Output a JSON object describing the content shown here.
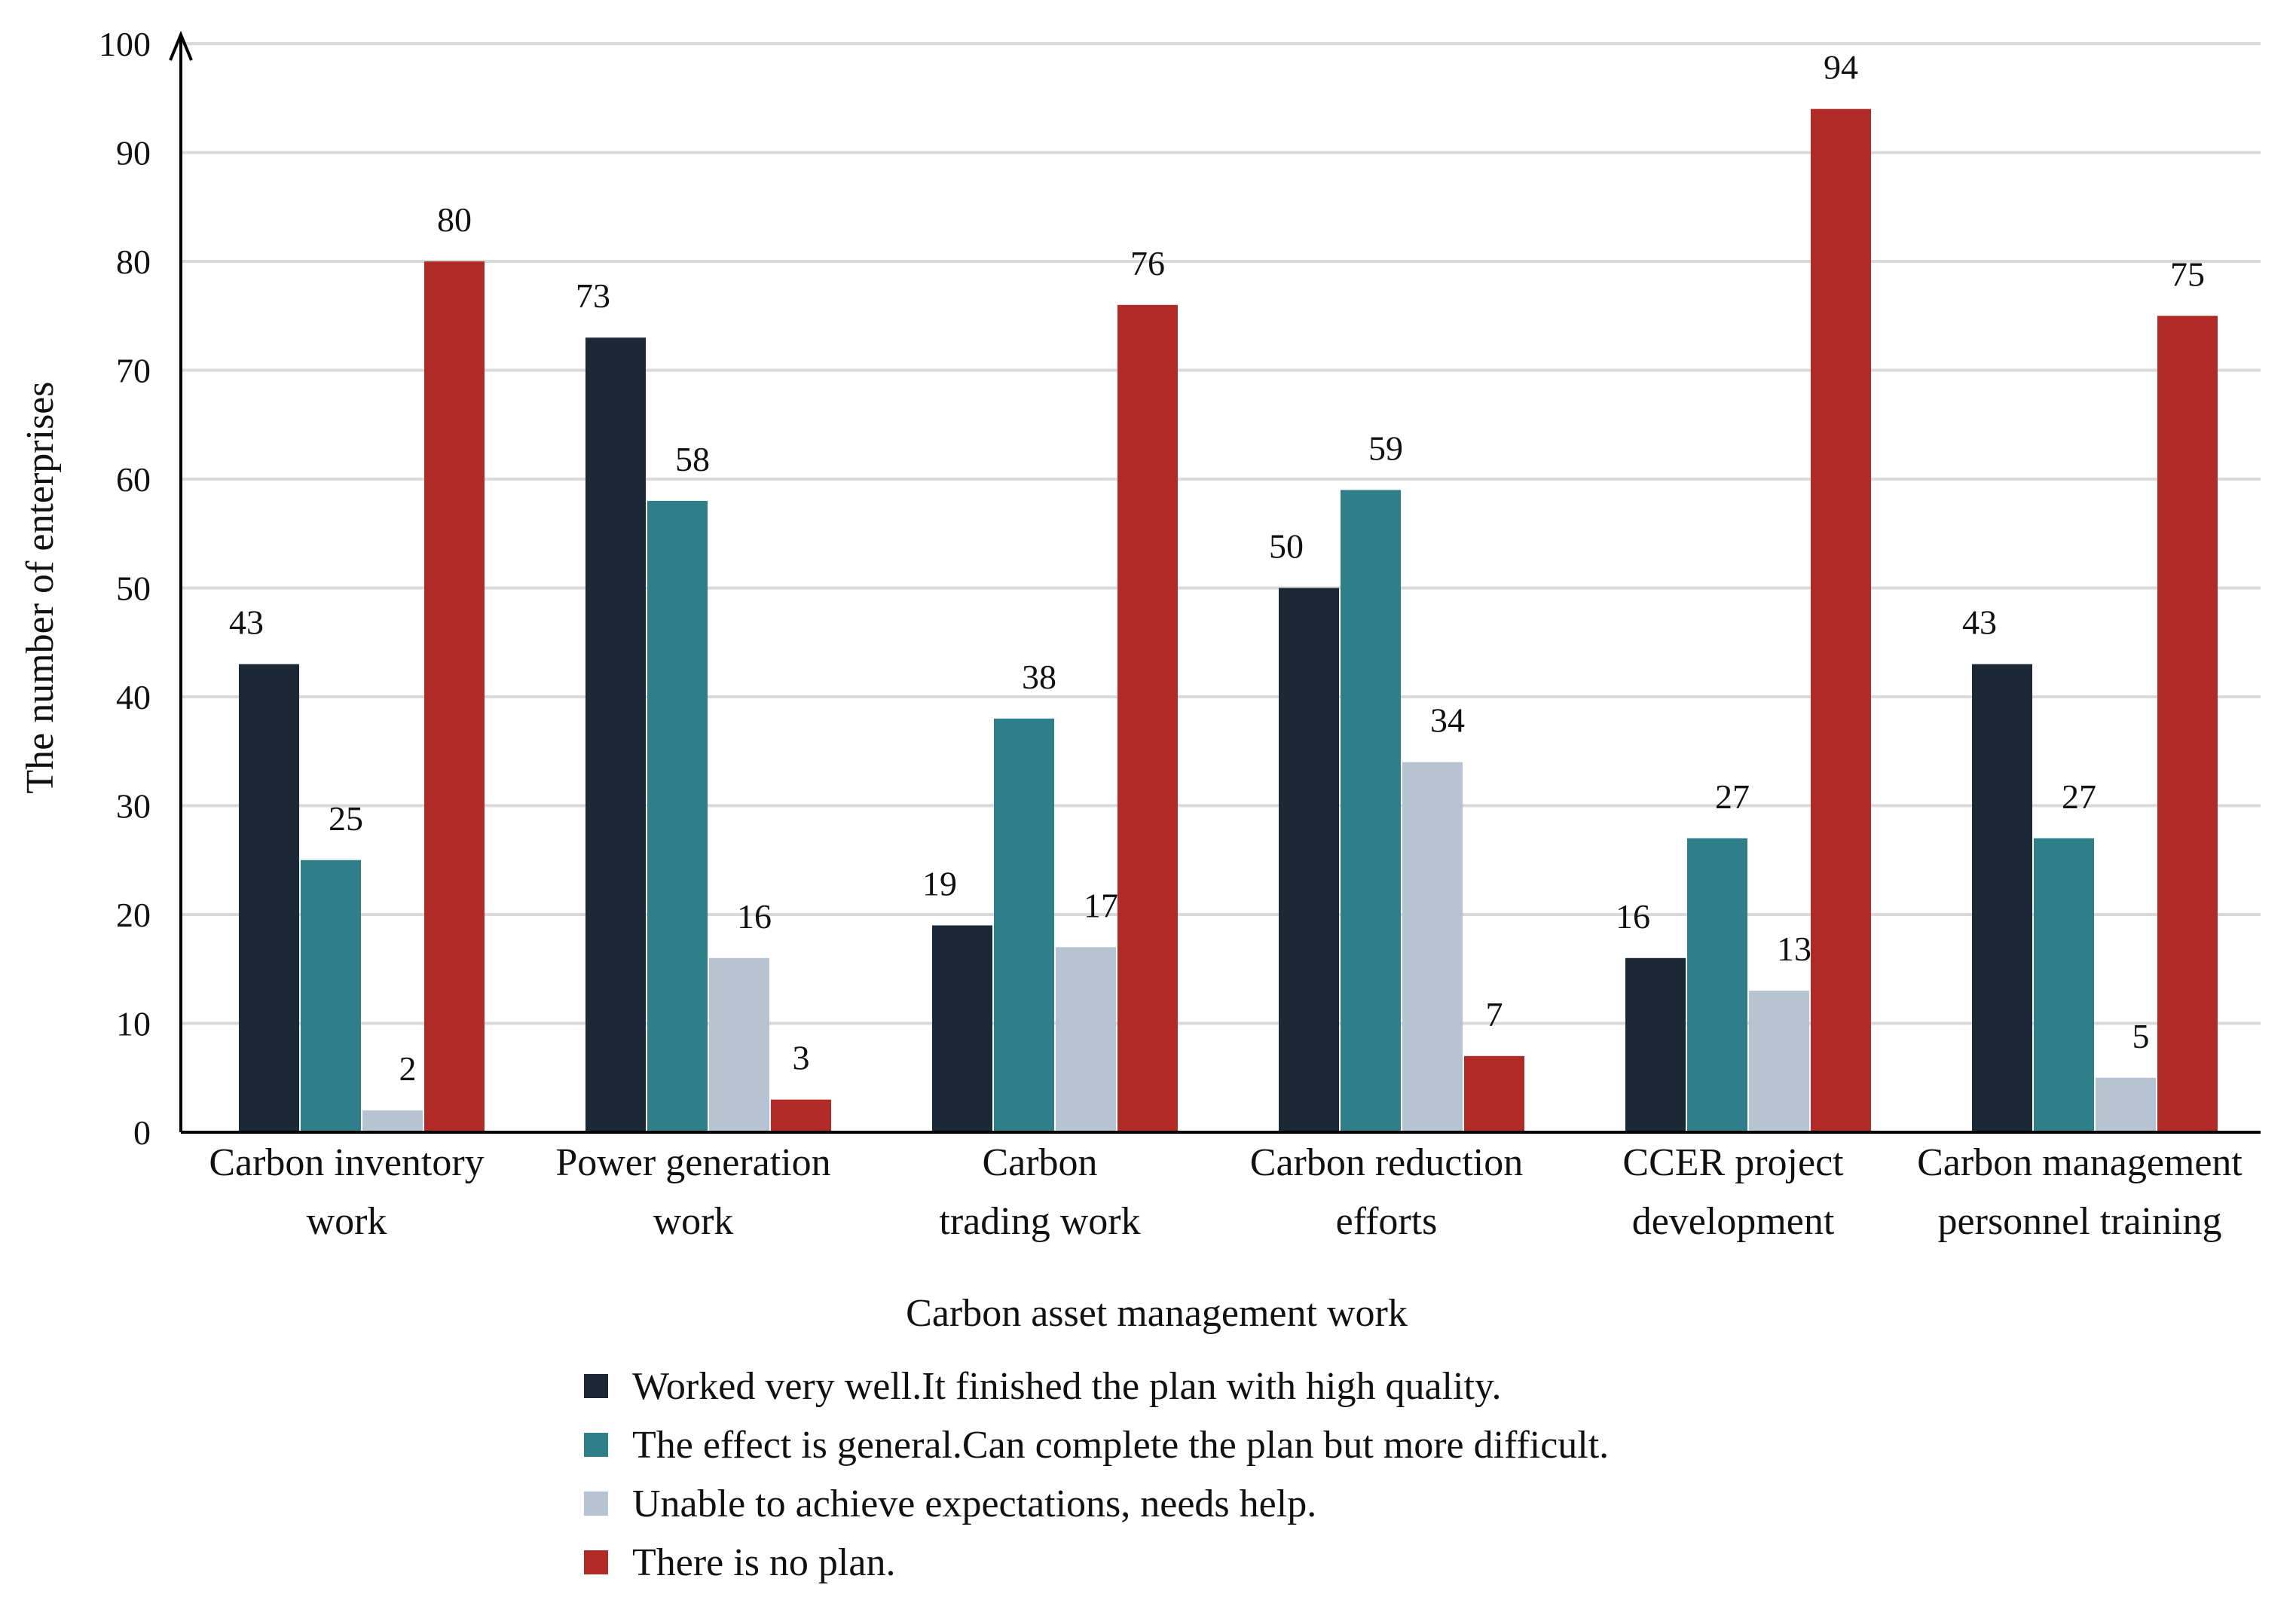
{
  "chart_data": {
    "type": "bar",
    "categories": [
      [
        "Carbon inventory",
        "work"
      ],
      [
        "Power generation",
        "work"
      ],
      [
        "Carbon",
        "trading work"
      ],
      [
        "Carbon reduction",
        "efforts"
      ],
      [
        "CCER project",
        "development"
      ],
      [
        "Carbon management",
        "personnel training"
      ]
    ],
    "series": [
      {
        "name": "Worked very well.It finished the plan with high quality.",
        "color": "#1b2838",
        "values": [
          43,
          73,
          19,
          50,
          16,
          43
        ]
      },
      {
        "name": "The effect is general.Can complete the plan but more difficult.",
        "color": "#2e7f89",
        "values": [
          25,
          58,
          38,
          59,
          27,
          27
        ]
      },
      {
        "name": "Unable to achieve expectations, needs help.",
        "color": "#b5c3d3",
        "values": [
          2,
          16,
          17,
          34,
          13,
          5
        ]
      },
      {
        "name": "There is no plan.",
        "color": "#b22a25",
        "values": [
          80,
          3,
          76,
          7,
          94,
          75
        ]
      }
    ],
    "xlabel": "Carbon asset management work",
    "ylabel": "The number of enterprises",
    "ylim": [
      0,
      100
    ],
    "yticks": [
      0,
      10,
      20,
      30,
      40,
      50,
      60,
      70,
      80,
      90,
      100
    ],
    "grid": true,
    "legend_position": "bottom"
  }
}
